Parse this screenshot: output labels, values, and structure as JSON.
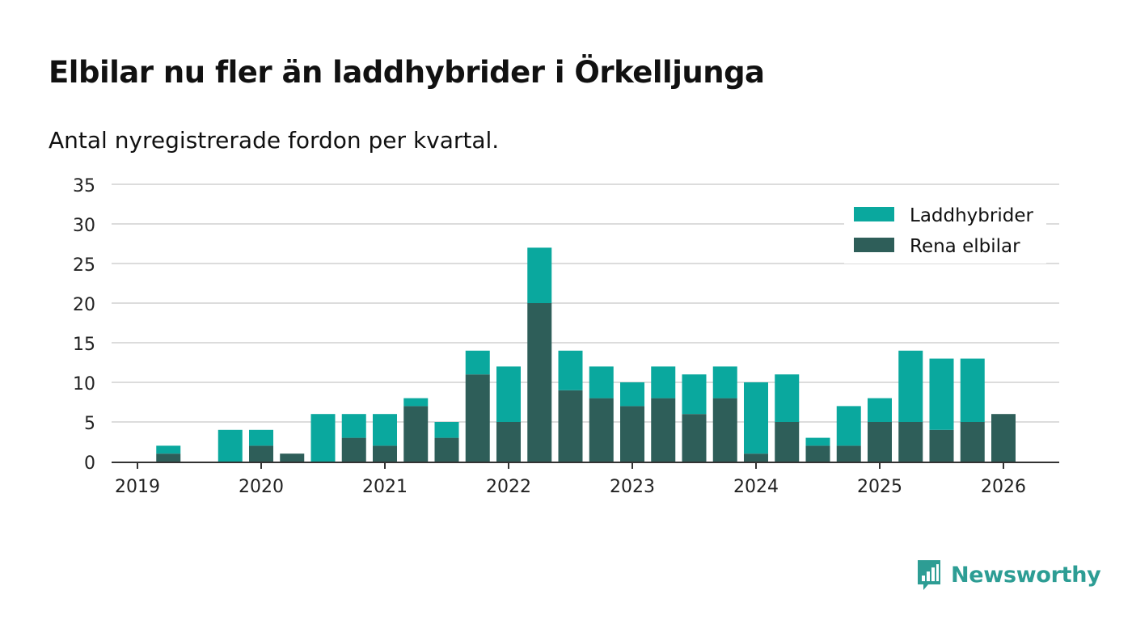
{
  "title": "Elbilar nu fler än laddhybrider i Örkelljunga",
  "subtitle": "Antal nyregistrerade fordon per kvartal.",
  "brand": "Newsworthy",
  "colors": {
    "laddhybrider": "#0aa89e",
    "rena_elbilar": "#2e5e59",
    "grid": "#dcdcdc",
    "axis": "#333333",
    "brand": "#2d9d94"
  },
  "chart_data": {
    "type": "bar",
    "stacked": true,
    "ylim": [
      0,
      35
    ],
    "yticks": [
      0,
      5,
      10,
      15,
      20,
      25,
      30,
      35
    ],
    "xtick_labels": [
      "2019",
      "2020",
      "2021",
      "2022",
      "2023",
      "2024",
      "2025",
      "2026"
    ],
    "legend_position": "top-right",
    "categories": [
      "2019 Q1",
      "2019 Q2",
      "2019 Q3",
      "2019 Q4",
      "2020 Q1",
      "2020 Q2",
      "2020 Q3",
      "2020 Q4",
      "2021 Q1",
      "2021 Q2",
      "2021 Q3",
      "2021 Q4",
      "2022 Q1",
      "2022 Q2",
      "2022 Q3",
      "2022 Q4",
      "2023 Q1",
      "2023 Q2",
      "2023 Q3",
      "2023 Q4",
      "2024 Q1",
      "2024 Q2",
      "2024 Q3",
      "2024 Q4",
      "2025 Q1",
      "2025 Q2",
      "2025 Q3",
      "2025 Q4",
      "2026 Q1"
    ],
    "series": [
      {
        "name": "Rena elbilar",
        "values": [
          0,
          1,
          0,
          0,
          2,
          1,
          0,
          3,
          2,
          7,
          3,
          11,
          5,
          20,
          9,
          8,
          7,
          8,
          6,
          8,
          1,
          5,
          2,
          2,
          5,
          5,
          4,
          5,
          6
        ]
      },
      {
        "name": "Laddhybrider",
        "values": [
          0,
          1,
          0,
          4,
          2,
          0,
          6,
          3,
          4,
          1,
          2,
          3,
          7,
          7,
          5,
          4,
          3,
          4,
          5,
          4,
          9,
          6,
          1,
          5,
          3,
          9,
          9,
          8,
          0
        ]
      }
    ]
  }
}
